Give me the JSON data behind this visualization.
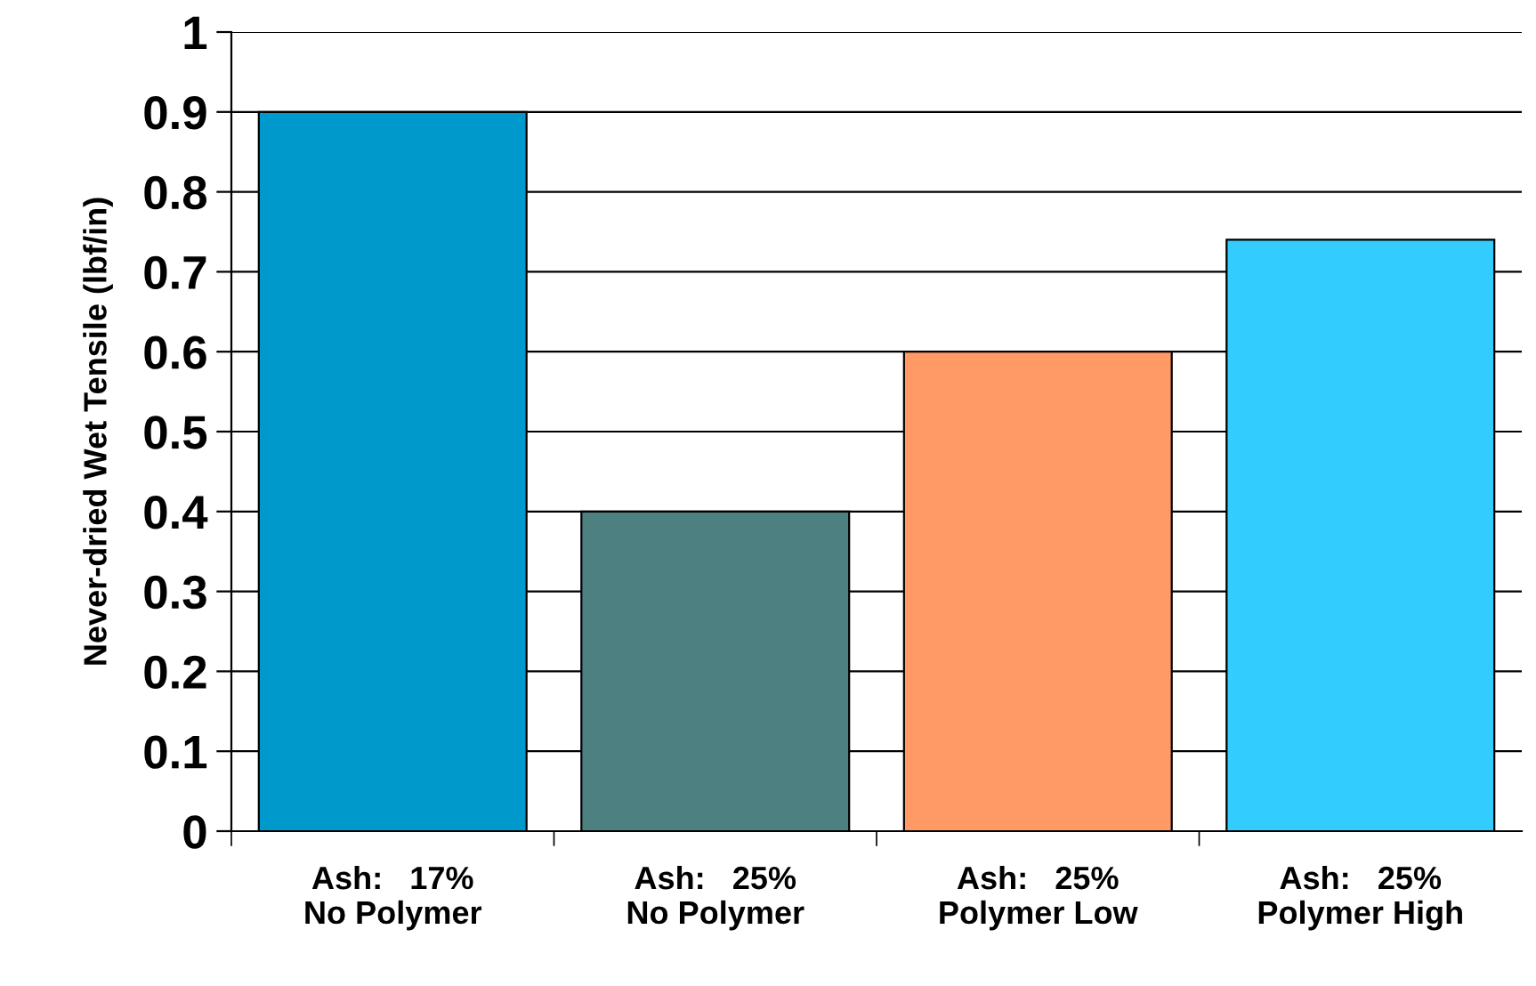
{
  "chart_data": {
    "type": "bar",
    "ylabel": "Never-dried Wet Tensile (lbf/in)",
    "categories": [
      "Ash:   17%\nNo Polymer",
      "Ash:   25%\nNo Polymer",
      "Ash:   25%\nPolymer Low",
      "Ash:   25%\nPolymer High"
    ],
    "values": [
      0.9,
      0.4,
      0.6,
      0.74
    ],
    "colors": [
      "#0099cc",
      "#4d8080",
      "#ff9966",
      "#33ccff"
    ],
    "ylim": [
      0,
      1
    ],
    "yticks": [
      0,
      0.1,
      0.2,
      0.3,
      0.4,
      0.5,
      0.6,
      0.7,
      0.8,
      0.9,
      1
    ],
    "grid": "y"
  }
}
